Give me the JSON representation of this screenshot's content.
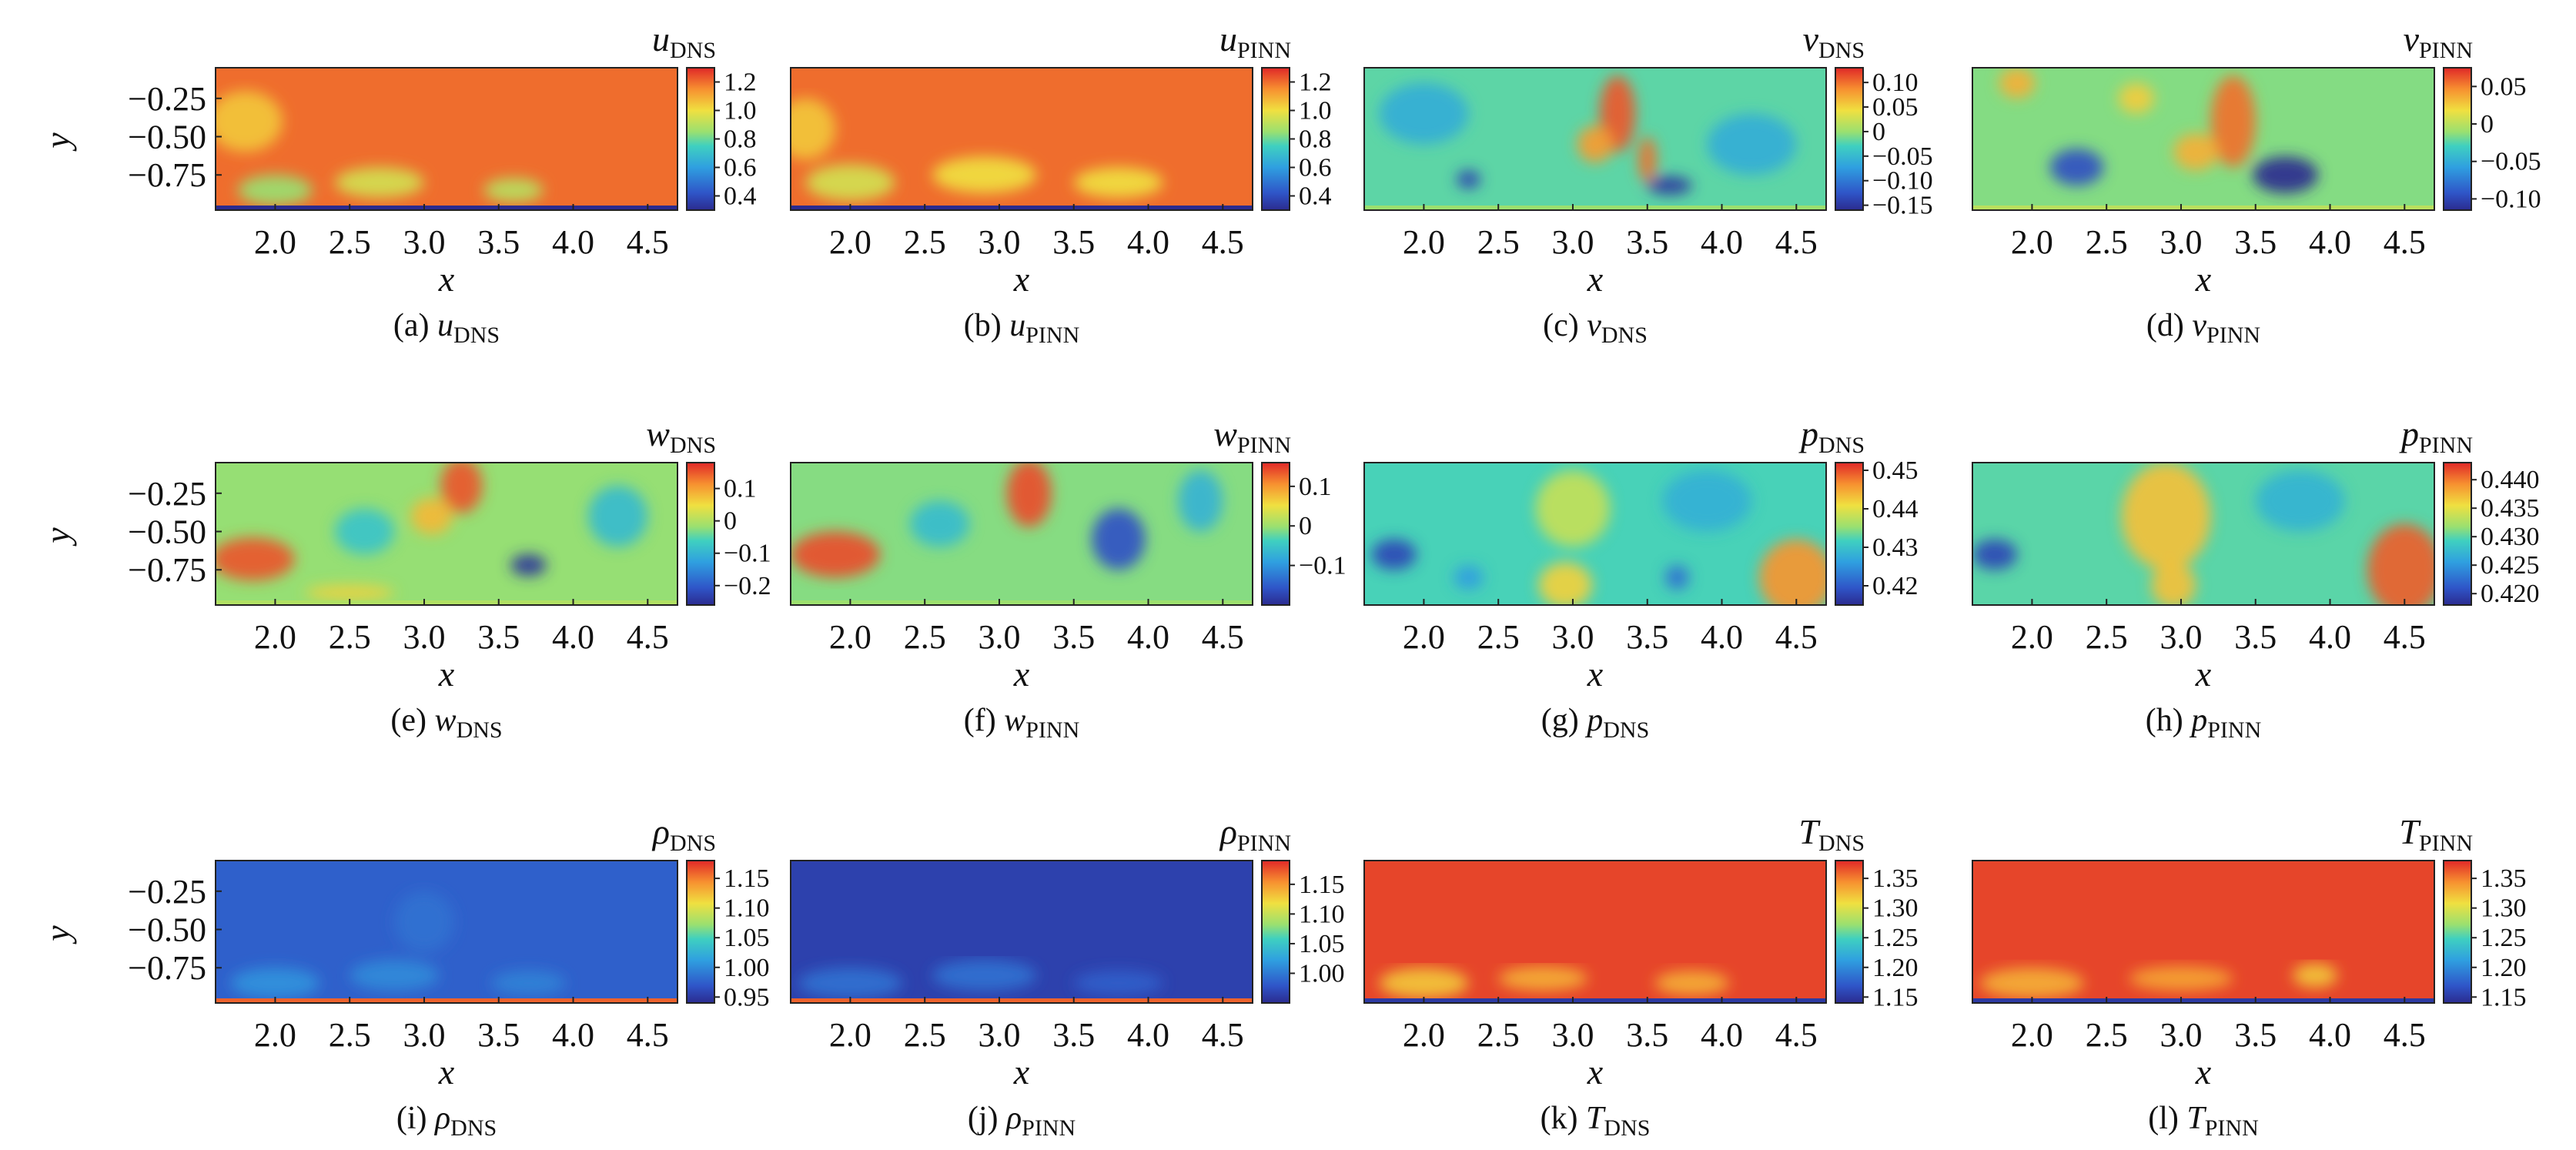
{
  "figure": {
    "x_label": "x",
    "y_label": "y"
  },
  "chart_data": [
    {
      "type": "heatmap",
      "id": "a",
      "caption_letter": "(a)",
      "symbol": "u",
      "subscript": "DNS",
      "x_ticks": [
        "2.0",
        "2.5",
        "3.0",
        "3.5",
        "4.0",
        "4.5"
      ],
      "y_ticks": [
        "−0.25",
        "−0.50",
        "−0.75"
      ],
      "xlim": [
        1.6,
        4.7
      ],
      "ylim": [
        -0.98,
        -0.05
      ],
      "colorbar": {
        "min": 0.3,
        "max": 1.3,
        "ticks": [
          1.2,
          1.0,
          0.8,
          0.6,
          0.4
        ],
        "tick_labels": [
          "1.2",
          "1.0",
          "0.8",
          "0.6",
          "0.4"
        ]
      },
      "field": {
        "mean": 1.2,
        "blobs": [
          [
            2.0,
            -0.85,
            0.25,
            0.1,
            -0.35
          ],
          [
            2.7,
            -0.8,
            0.3,
            0.1,
            -0.25
          ],
          [
            3.6,
            -0.85,
            0.2,
            0.08,
            -0.3
          ],
          [
            1.8,
            -0.4,
            0.25,
            0.2,
            -0.15
          ]
        ],
        "wall": 0.3
      }
    },
    {
      "type": "heatmap",
      "id": "b",
      "caption_letter": "(b)",
      "symbol": "u",
      "subscript": "PINN",
      "x_ticks": [
        "2.0",
        "2.5",
        "3.0",
        "3.5",
        "4.0",
        "4.5"
      ],
      "y_ticks": [],
      "xlim": [
        1.6,
        4.7
      ],
      "ylim": [
        -0.98,
        -0.05
      ],
      "colorbar": {
        "min": 0.3,
        "max": 1.3,
        "ticks": [
          1.2,
          1.0,
          0.8,
          0.6,
          0.4
        ],
        "tick_labels": [
          "1.2",
          "1.0",
          "0.8",
          "0.6",
          "0.4"
        ]
      },
      "field": {
        "mean": 1.2,
        "blobs": [
          [
            2.0,
            -0.8,
            0.3,
            0.12,
            -0.25
          ],
          [
            2.9,
            -0.75,
            0.35,
            0.12,
            -0.2
          ],
          [
            3.8,
            -0.8,
            0.3,
            0.1,
            -0.2
          ],
          [
            1.7,
            -0.45,
            0.2,
            0.2,
            -0.15
          ]
        ],
        "wall": 0.3
      }
    },
    {
      "type": "heatmap",
      "id": "c",
      "caption_letter": "(c)",
      "symbol": "v",
      "subscript": "DNS",
      "x_ticks": [
        "2.0",
        "2.5",
        "3.0",
        "3.5",
        "4.0",
        "4.5"
      ],
      "y_ticks": [],
      "xlim": [
        1.6,
        4.7
      ],
      "ylim": [
        -0.98,
        -0.05
      ],
      "colorbar": {
        "min": -0.16,
        "max": 0.13,
        "ticks": [
          0.1,
          0.05,
          0,
          -0.05,
          -0.1,
          -0.15
        ],
        "tick_labels": [
          "0.10",
          "0.05",
          "0",
          "−0.05",
          "−0.10",
          "−0.15"
        ]
      },
      "field": {
        "mean": -0.02,
        "blobs": [
          [
            3.3,
            -0.35,
            0.12,
            0.25,
            0.13
          ],
          [
            3.15,
            -0.55,
            0.12,
            0.12,
            0.1
          ],
          [
            3.5,
            -0.65,
            0.06,
            0.15,
            0.12
          ],
          [
            3.65,
            -0.82,
            0.15,
            0.06,
            -0.13
          ],
          [
            2.3,
            -0.78,
            0.08,
            0.06,
            -0.12
          ],
          [
            2.0,
            -0.35,
            0.3,
            0.2,
            -0.04
          ],
          [
            4.2,
            -0.55,
            0.3,
            0.2,
            -0.04
          ]
        ],
        "wall": 0
      }
    },
    {
      "type": "heatmap",
      "id": "d",
      "caption_letter": "(d)",
      "symbol": "v",
      "subscript": "PINN",
      "x_ticks": [
        "2.0",
        "2.5",
        "3.0",
        "3.5",
        "4.0",
        "4.5"
      ],
      "y_ticks": [],
      "xlim": [
        1.6,
        4.7
      ],
      "ylim": [
        -0.98,
        -0.05
      ],
      "colorbar": {
        "min": -0.115,
        "max": 0.075,
        "ticks": [
          0.05,
          0,
          -0.05,
          -0.1
        ],
        "tick_labels": [
          "0.05",
          "0",
          "−0.05",
          "−0.10"
        ]
      },
      "field": {
        "mean": -0.015,
        "blobs": [
          [
            3.35,
            -0.4,
            0.15,
            0.3,
            0.07
          ],
          [
            3.1,
            -0.6,
            0.15,
            0.12,
            0.05
          ],
          [
            3.7,
            -0.75,
            0.22,
            0.12,
            -0.1
          ],
          [
            2.3,
            -0.7,
            0.18,
            0.12,
            -0.08
          ],
          [
            1.9,
            -0.15,
            0.12,
            0.1,
            0.05
          ],
          [
            2.7,
            -0.25,
            0.12,
            0.1,
            0.04
          ]
        ],
        "wall": 0
      }
    },
    {
      "type": "heatmap",
      "id": "e",
      "caption_letter": "(e)",
      "symbol": "w",
      "subscript": "DNS",
      "x_ticks": [
        "2.0",
        "2.5",
        "3.0",
        "3.5",
        "4.0",
        "4.5"
      ],
      "y_ticks": [
        "−0.25",
        "−0.50",
        "−0.75"
      ],
      "xlim": [
        1.6,
        4.7
      ],
      "ylim": [
        -0.98,
        -0.05
      ],
      "colorbar": {
        "min": -0.26,
        "max": 0.18,
        "ticks": [
          0.1,
          0,
          -0.1,
          -0.2
        ],
        "tick_labels": [
          "0.1",
          "0",
          "−0.1",
          "−0.2"
        ]
      },
      "field": {
        "mean": -0.02,
        "blobs": [
          [
            1.85,
            -0.68,
            0.28,
            0.14,
            0.17
          ],
          [
            3.25,
            -0.2,
            0.14,
            0.18,
            0.17
          ],
          [
            3.05,
            -0.4,
            0.14,
            0.12,
            0.1
          ],
          [
            3.7,
            -0.72,
            0.12,
            0.07,
            -0.23
          ],
          [
            2.6,
            -0.5,
            0.2,
            0.15,
            -0.06
          ],
          [
            4.3,
            -0.4,
            0.2,
            0.2,
            -0.07
          ],
          [
            2.5,
            -0.9,
            0.3,
            0.05,
            0.08
          ]
        ],
        "wall": 0
      }
    },
    {
      "type": "heatmap",
      "id": "f",
      "caption_letter": "(f)",
      "symbol": "w",
      "subscript": "PINN",
      "x_ticks": [
        "2.0",
        "2.5",
        "3.0",
        "3.5",
        "4.0",
        "4.5"
      ],
      "y_ticks": [],
      "xlim": [
        1.6,
        4.7
      ],
      "ylim": [
        -0.98,
        -0.05
      ],
      "colorbar": {
        "min": -0.2,
        "max": 0.16,
        "ticks": [
          0.1,
          0,
          -0.1
        ],
        "tick_labels": [
          "0.1",
          "0",
          "−0.1"
        ]
      },
      "field": {
        "mean": -0.01,
        "blobs": [
          [
            1.9,
            -0.65,
            0.3,
            0.15,
            0.15
          ],
          [
            3.2,
            -0.25,
            0.15,
            0.22,
            0.15
          ],
          [
            3.8,
            -0.55,
            0.18,
            0.2,
            -0.15
          ],
          [
            2.6,
            -0.45,
            0.2,
            0.15,
            -0.05
          ],
          [
            4.35,
            -0.3,
            0.15,
            0.2,
            -0.06
          ]
        ],
        "wall": 0
      }
    },
    {
      "type": "heatmap",
      "id": "g",
      "caption_letter": "(g)",
      "symbol": "p",
      "subscript": "DNS",
      "x_ticks": [
        "2.0",
        "2.5",
        "3.0",
        "3.5",
        "4.0",
        "4.5"
      ],
      "y_ticks": [],
      "xlim": [
        1.6,
        4.7
      ],
      "ylim": [
        -0.98,
        -0.05
      ],
      "colorbar": {
        "min": 0.415,
        "max": 0.452,
        "ticks": [
          0.45,
          0.44,
          0.43,
          0.42
        ],
        "tick_labels": [
          "0.45",
          "0.44",
          "0.43",
          "0.42"
        ]
      },
      "field": {
        "mean": 0.432,
        "blobs": [
          [
            1.8,
            -0.65,
            0.15,
            0.1,
            -0.014
          ],
          [
            4.5,
            -0.8,
            0.25,
            0.25,
            0.014
          ],
          [
            2.95,
            -0.85,
            0.18,
            0.15,
            0.01
          ],
          [
            3.0,
            -0.35,
            0.25,
            0.25,
            0.006
          ],
          [
            3.7,
            -0.8,
            0.08,
            0.08,
            -0.01
          ],
          [
            2.3,
            -0.8,
            0.1,
            0.08,
            -0.006
          ],
          [
            3.9,
            -0.3,
            0.3,
            0.2,
            -0.004
          ]
        ],
        "wall": null
      }
    },
    {
      "type": "heatmap",
      "id": "h",
      "caption_letter": "(h)",
      "symbol": "p",
      "subscript": "PINN",
      "x_ticks": [
        "2.0",
        "2.5",
        "3.0",
        "3.5",
        "4.0",
        "4.5"
      ],
      "y_ticks": [],
      "xlim": [
        1.6,
        4.7
      ],
      "ylim": [
        -0.98,
        -0.05
      ],
      "colorbar": {
        "min": 0.418,
        "max": 0.443,
        "ticks": [
          0.44,
          0.435,
          0.43,
          0.425,
          0.42
        ],
        "tick_labels": [
          "0.440",
          "0.435",
          "0.430",
          "0.425",
          "0.420"
        ]
      },
      "field": {
        "mean": 0.43,
        "blobs": [
          [
            1.75,
            -0.65,
            0.15,
            0.1,
            -0.01
          ],
          [
            4.5,
            -0.75,
            0.25,
            0.3,
            0.011
          ],
          [
            2.9,
            -0.4,
            0.3,
            0.35,
            0.007
          ],
          [
            2.95,
            -0.85,
            0.15,
            0.15,
            0.007
          ],
          [
            3.8,
            -0.3,
            0.3,
            0.2,
            -0.003
          ]
        ],
        "wall": null
      }
    },
    {
      "type": "heatmap",
      "id": "i",
      "caption_letter": "(i)",
      "symbol": "ρ",
      "subscript": "DNS",
      "x_ticks": [
        "2.0",
        "2.5",
        "3.0",
        "3.5",
        "4.0",
        "4.5"
      ],
      "y_ticks": [
        "−0.25",
        "−0.50",
        "−0.75"
      ],
      "xlim": [
        1.6,
        4.7
      ],
      "ylim": [
        -0.98,
        -0.05
      ],
      "colorbar": {
        "min": 0.94,
        "max": 1.18,
        "ticks": [
          1.15,
          1.1,
          1.05,
          1.0,
          0.95
        ],
        "tick_labels": [
          "1.15",
          "1.10",
          "1.05",
          "1.00",
          "0.95"
        ]
      },
      "field": {
        "mean": 0.975,
        "blobs": [
          [
            2.0,
            -0.85,
            0.3,
            0.1,
            0.03
          ],
          [
            2.8,
            -0.8,
            0.3,
            0.1,
            0.025
          ],
          [
            3.7,
            -0.85,
            0.25,
            0.08,
            0.02
          ],
          [
            3.0,
            -0.45,
            0.2,
            0.2,
            0.01
          ]
        ],
        "wall": 1.16
      }
    },
    {
      "type": "heatmap",
      "id": "j",
      "caption_letter": "(j)",
      "symbol": "ρ",
      "subscript": "PINN",
      "x_ticks": [
        "2.0",
        "2.5",
        "3.0",
        "3.5",
        "4.0",
        "4.5"
      ],
      "y_ticks": [],
      "xlim": [
        1.6,
        4.7
      ],
      "ylim": [
        -0.98,
        -0.05
      ],
      "colorbar": {
        "min": 0.95,
        "max": 1.19,
        "ticks": [
          1.15,
          1.1,
          1.05,
          1.0
        ],
        "tick_labels": [
          "1.15",
          "1.10",
          "1.05",
          "1.00"
        ]
      },
      "field": {
        "mean": 0.965,
        "blobs": [
          [
            2.0,
            -0.85,
            0.35,
            0.1,
            0.03
          ],
          [
            2.9,
            -0.8,
            0.35,
            0.1,
            0.03
          ],
          [
            3.8,
            -0.85,
            0.3,
            0.08,
            0.02
          ]
        ],
        "wall": 1.17
      }
    },
    {
      "type": "heatmap",
      "id": "k",
      "caption_letter": "(k)",
      "symbol": "T",
      "subscript": "DNS",
      "x_ticks": [
        "2.0",
        "2.5",
        "3.0",
        "3.5",
        "4.0",
        "4.5"
      ],
      "y_ticks": [],
      "xlim": [
        1.6,
        4.7
      ],
      "ylim": [
        -0.98,
        -0.05
      ],
      "colorbar": {
        "min": 1.14,
        "max": 1.38,
        "ticks": [
          1.35,
          1.3,
          1.25,
          1.2,
          1.15
        ],
        "tick_labels": [
          "1.35",
          "1.30",
          "1.25",
          "1.20",
          "1.15"
        ]
      },
      "field": {
        "mean": 1.37,
        "blobs": [
          [
            2.0,
            -0.85,
            0.3,
            0.1,
            -0.05
          ],
          [
            2.8,
            -0.82,
            0.3,
            0.08,
            -0.04
          ],
          [
            3.8,
            -0.85,
            0.25,
            0.08,
            -0.04
          ]
        ],
        "wall": 1.15
      }
    },
    {
      "type": "heatmap",
      "id": "l",
      "caption_letter": "(l)",
      "symbol": "T",
      "subscript": "PINN",
      "x_ticks": [
        "2.0",
        "2.5",
        "3.0",
        "3.5",
        "4.0",
        "4.5"
      ],
      "y_ticks": [],
      "xlim": [
        1.6,
        4.7
      ],
      "ylim": [
        -0.98,
        -0.05
      ],
      "colorbar": {
        "min": 1.14,
        "max": 1.38,
        "ticks": [
          1.35,
          1.3,
          1.25,
          1.2,
          1.15
        ],
        "tick_labels": [
          "1.35",
          "1.30",
          "1.25",
          "1.20",
          "1.15"
        ]
      },
      "field": {
        "mean": 1.37,
        "blobs": [
          [
            2.0,
            -0.85,
            0.35,
            0.1,
            -0.04
          ],
          [
            3.0,
            -0.82,
            0.35,
            0.08,
            -0.035
          ],
          [
            3.9,
            -0.8,
            0.15,
            0.08,
            -0.05
          ]
        ],
        "wall": 1.15
      }
    }
  ]
}
